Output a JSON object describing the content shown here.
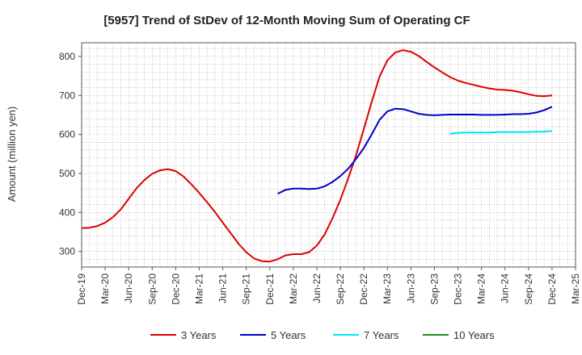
{
  "chart_data": {
    "type": "line",
    "title": "[5957]  Trend of StDev of 12-Month Moving Sum of Operating CF",
    "xlabel": "",
    "ylabel": "Amount (million yen)",
    "ylim": [
      260,
      835
    ],
    "yticks": [
      300,
      400,
      500,
      600,
      700,
      800
    ],
    "x_tick_labels": [
      "Dec-19",
      "Mar-20",
      "Jun-20",
      "Sep-20",
      "Dec-20",
      "Mar-21",
      "Jun-21",
      "Sep-21",
      "Dec-21",
      "Mar-22",
      "Jun-22",
      "Sep-22",
      "Dec-22",
      "Mar-23",
      "Jun-23",
      "Sep-23",
      "Dec-23",
      "Mar-24",
      "Jun-24",
      "Sep-24",
      "Dec-24",
      "Mar-25"
    ],
    "x_months": [
      "2019-12",
      "2020-01",
      "2020-02",
      "2020-03",
      "2020-04",
      "2020-05",
      "2020-06",
      "2020-07",
      "2020-08",
      "2020-09",
      "2020-10",
      "2020-11",
      "2020-12",
      "2021-01",
      "2021-02",
      "2021-03",
      "2021-04",
      "2021-05",
      "2021-06",
      "2021-07",
      "2021-08",
      "2021-09",
      "2021-10",
      "2021-11",
      "2021-12",
      "2022-01",
      "2022-02",
      "2022-03",
      "2022-04",
      "2022-05",
      "2022-06",
      "2022-07",
      "2022-08",
      "2022-09",
      "2022-10",
      "2022-11",
      "2022-12",
      "2023-01",
      "2023-02",
      "2023-03",
      "2023-04",
      "2023-05",
      "2023-06",
      "2023-07",
      "2023-08",
      "2023-09",
      "2023-10",
      "2023-11",
      "2023-12",
      "2024-01",
      "2024-02",
      "2024-03",
      "2024-04",
      "2024-05",
      "2024-06",
      "2024-07",
      "2024-08",
      "2024-09",
      "2024-10",
      "2024-11",
      "2024-12"
    ],
    "grid": true,
    "legend_position": "bottom",
    "series": [
      {
        "name": "3 Years",
        "color": "#dd0000",
        "values": [
          360,
          361,
          365,
          374,
          388,
          408,
          435,
          462,
          483,
          499,
          508,
          511,
          506,
          492,
          472,
          450,
          426,
          401,
          374,
          347,
          320,
          298,
          282,
          275,
          274,
          280,
          290,
          293,
          293,
          298,
          315,
          344,
          385,
          432,
          487,
          546,
          614,
          683,
          748,
          790,
          810,
          816,
          812,
          801,
          786,
          772,
          759,
          747,
          738,
          732,
          727,
          722,
          718,
          715,
          714,
          712,
          708,
          703,
          699,
          698,
          700
        ]
      },
      {
        "name": "5 Years",
        "color": "#0000cc",
        "values": [
          null,
          null,
          null,
          null,
          null,
          null,
          null,
          null,
          null,
          null,
          null,
          null,
          null,
          null,
          null,
          null,
          null,
          null,
          null,
          null,
          null,
          null,
          null,
          null,
          null,
          448,
          458,
          461,
          461,
          460,
          461,
          467,
          478,
          493,
          512,
          537,
          565,
          600,
          637,
          659,
          666,
          665,
          659,
          653,
          650,
          649,
          650,
          651,
          651,
          651,
          651,
          650,
          650,
          650,
          651,
          652,
          652,
          653,
          656,
          662,
          671
        ]
      },
      {
        "name": "7 Years",
        "color": "#00e5ee",
        "values": [
          null,
          null,
          null,
          null,
          null,
          null,
          null,
          null,
          null,
          null,
          null,
          null,
          null,
          null,
          null,
          null,
          null,
          null,
          null,
          null,
          null,
          null,
          null,
          null,
          null,
          null,
          null,
          null,
          null,
          null,
          null,
          null,
          null,
          null,
          null,
          null,
          null,
          null,
          null,
          null,
          null,
          null,
          null,
          null,
          null,
          null,
          null,
          602,
          604,
          605,
          605,
          605,
          605,
          606,
          606,
          606,
          606,
          606,
          607,
          607,
          609
        ]
      },
      {
        "name": "10 Years",
        "color": "#228b22",
        "values": []
      }
    ]
  }
}
